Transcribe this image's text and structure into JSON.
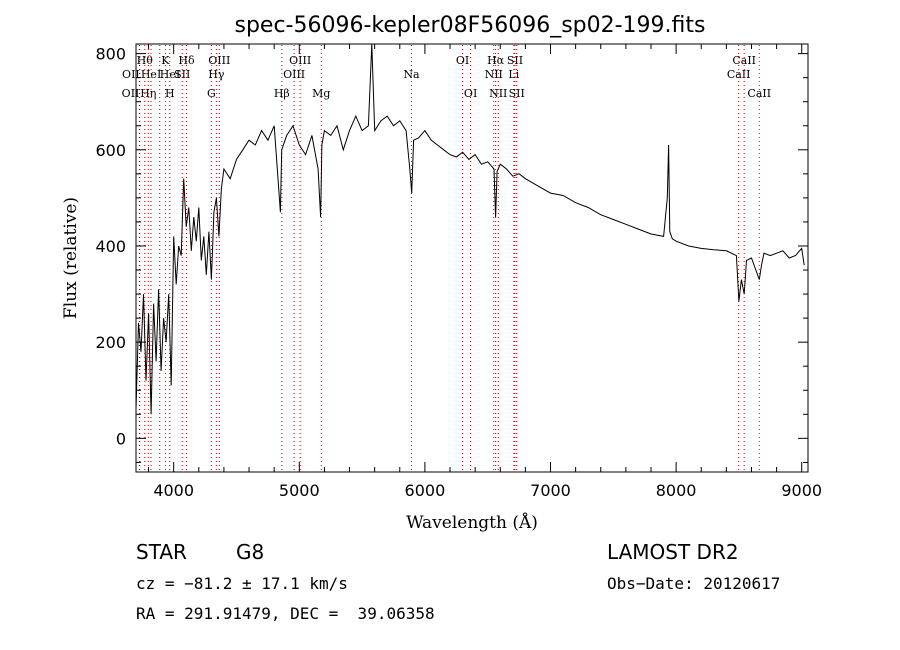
{
  "chart_data": {
    "type": "line",
    "title": "spec-56096-kepler08F56096_sp02-199.fits",
    "xlabel": "Wavelength (Å)",
    "ylabel": "Flux (relative)",
    "xlim": [
      3700,
      9050
    ],
    "ylim": [
      -70,
      820
    ],
    "xticks": [
      4000,
      5000,
      6000,
      7000,
      8000,
      9000
    ],
    "yticks": [
      0,
      200,
      400,
      600,
      800
    ],
    "grid": false,
    "series": [
      {
        "x": [
          3700,
          3720,
          3740,
          3760,
          3780,
          3800,
          3820,
          3840,
          3860,
          3880,
          3900,
          3920,
          3940,
          3960,
          3980,
          4000,
          4020,
          4040,
          4060,
          4080,
          4100,
          4120,
          4140,
          4160,
          4180,
          4200,
          4220,
          4240,
          4260,
          4280,
          4300,
          4320,
          4340,
          4360,
          4380,
          4400,
          4450,
          4500,
          4550,
          4600,
          4650,
          4700,
          4750,
          4800,
          4850,
          4860,
          4900,
          4950,
          5000,
          5050,
          5100,
          5150,
          5170,
          5180,
          5200,
          5250,
          5300,
          5350,
          5400,
          5450,
          5500,
          5550,
          5577,
          5600,
          5650,
          5700,
          5750,
          5800,
          5850,
          5880,
          5895,
          5910,
          5950,
          6000,
          6050,
          6100,
          6150,
          6200,
          6250,
          6300,
          6350,
          6400,
          6450,
          6500,
          6550,
          6563,
          6575,
          6600,
          6650,
          6700,
          6750,
          6800,
          6900,
          7000,
          7100,
          7200,
          7300,
          7400,
          7500,
          7600,
          7700,
          7800,
          7900,
          7930,
          7940,
          7950,
          7970,
          8000,
          8100,
          8200,
          8300,
          8400,
          8480,
          8500,
          8520,
          8542,
          8560,
          8600,
          8662,
          8680,
          8700,
          8750,
          8800,
          8850,
          8900,
          8950,
          9000,
          9020
        ],
        "y": [
          60,
          240,
          180,
          300,
          120,
          260,
          50,
          280,
          160,
          310,
          140,
          250,
          200,
          300,
          110,
          420,
          320,
          400,
          380,
          540,
          440,
          480,
          390,
          460,
          410,
          480,
          370,
          420,
          340,
          430,
          330,
          470,
          500,
          420,
          520,
          560,
          540,
          580,
          600,
          620,
          610,
          640,
          620,
          650,
          470,
          600,
          630,
          650,
          610,
          590,
          630,
          560,
          460,
          610,
          640,
          630,
          650,
          600,
          640,
          670,
          640,
          650,
          820,
          640,
          660,
          670,
          650,
          660,
          640,
          560,
          510,
          620,
          625,
          640,
          620,
          610,
          600,
          590,
          585,
          595,
          580,
          590,
          570,
          575,
          560,
          460,
          555,
          570,
          560,
          545,
          550,
          540,
          525,
          510,
          505,
          490,
          480,
          465,
          455,
          445,
          435,
          425,
          420,
          500,
          610,
          430,
          415,
          410,
          400,
          395,
          392,
          390,
          380,
          285,
          330,
          300,
          370,
          375,
          330,
          360,
          385,
          380,
          385,
          390,
          375,
          380,
          395,
          360
        ]
      }
    ],
    "line_markers": [
      {
        "wl": 3727,
        "name": "OII",
        "row": 2,
        "anchor": "end"
      },
      {
        "wl": 3730,
        "name": "OII",
        "row": 1,
        "anchor": "end"
      },
      {
        "wl": 3770,
        "name": "Hθ",
        "row": 0,
        "anchor": "middle"
      },
      {
        "wl": 3798,
        "name": "Hη",
        "row": 2,
        "anchor": "middle"
      },
      {
        "wl": 3820,
        "name": "HeI",
        "row": 1,
        "anchor": "middle"
      },
      {
        "wl": 3889,
        "name": "HeI",
        "row": 1,
        "anchor": "start"
      },
      {
        "wl": 3934,
        "name": "K",
        "row": 0,
        "anchor": "middle"
      },
      {
        "wl": 3969,
        "name": "H",
        "row": 2,
        "anchor": "middle"
      },
      {
        "wl": 4068,
        "name": "SII",
        "row": 1,
        "anchor": "middle"
      },
      {
        "wl": 4102,
        "name": "Hδ",
        "row": 0,
        "anchor": "middle"
      },
      {
        "wl": 4300,
        "name": "G",
        "row": 2,
        "anchor": "middle"
      },
      {
        "wl": 4340,
        "name": "Hγ",
        "row": 1,
        "anchor": "middle"
      },
      {
        "wl": 4363,
        "name": "OIII",
        "row": 0,
        "anchor": "middle"
      },
      {
        "wl": 4861,
        "name": "Hβ",
        "row": 2,
        "anchor": "middle"
      },
      {
        "wl": 4959,
        "name": "OIII",
        "row": 1,
        "anchor": "middle"
      },
      {
        "wl": 5007,
        "name": "OIII",
        "row": 0,
        "anchor": "middle"
      },
      {
        "wl": 5175,
        "name": "Mg",
        "row": 2,
        "anchor": "middle"
      },
      {
        "wl": 5893,
        "name": "Na",
        "row": 1,
        "anchor": "middle"
      },
      {
        "wl": 6300,
        "name": "OI",
        "row": 0,
        "anchor": "middle"
      },
      {
        "wl": 6364,
        "name": "OI",
        "row": 2,
        "anchor": "middle"
      },
      {
        "wl": 6548,
        "name": "NII",
        "row": 1,
        "anchor": "middle"
      },
      {
        "wl": 6563,
        "name": "Hα",
        "row": 0,
        "anchor": "middle"
      },
      {
        "wl": 6584,
        "name": "NII",
        "row": 2,
        "anchor": "middle"
      },
      {
        "wl": 6708,
        "name": "Li",
        "row": 1,
        "anchor": "middle"
      },
      {
        "wl": 6717,
        "name": "SII",
        "row": 0,
        "anchor": "middle"
      },
      {
        "wl": 6731,
        "name": "SII",
        "row": 2,
        "anchor": "middle"
      },
      {
        "wl": 8498,
        "name": "CaII",
        "row": 1,
        "anchor": "middle"
      },
      {
        "wl": 8542,
        "name": "CaII",
        "row": 0,
        "anchor": "middle"
      },
      {
        "wl": 8662,
        "name": "CaII",
        "row": 2,
        "anchor": "middle"
      }
    ],
    "colors": {
      "spectrum": "#000000",
      "markers": "#cc0000",
      "axes": "#000000"
    }
  },
  "info": {
    "object_class": "STAR",
    "subclass": "G8",
    "survey": "LAMOST DR2",
    "cz": "cz = −81.2 ± 17.1 km/s",
    "obs_date": "Obs−Date: 20120617",
    "radec": "RA = 291.91479, DEC =  39.06358"
  }
}
